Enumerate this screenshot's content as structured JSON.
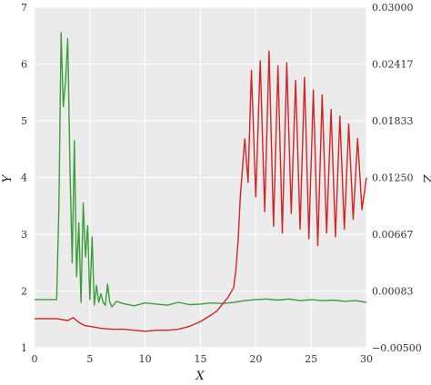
{
  "chart_data": {
    "type": "line",
    "xlabel": "X",
    "ylabel": "Y",
    "y2label": "Z",
    "xlim": [
      0,
      30
    ],
    "ylim": [
      1,
      7
    ],
    "y2lim": [
      -0.005,
      0.03
    ],
    "grid": true,
    "x_ticks": [
      "0",
      "5",
      "10",
      "15",
      "20",
      "25",
      "30"
    ],
    "y_ticks": [
      "1",
      "2",
      "3",
      "4",
      "5",
      "6",
      "7"
    ],
    "y2_ticks": [
      "−0.00500",
      "0.00083",
      "0.00667",
      "0.01250",
      "0.01833",
      "0.02417",
      "0.03000"
    ],
    "series": [
      {
        "axis": "left",
        "color": "#3a9e3a",
        "x": [
          0,
          2.0,
          2.2,
          2.4,
          2.6,
          2.8,
          3.0,
          3.2,
          3.4,
          3.6,
          3.8,
          4.0,
          4.2,
          4.4,
          4.6,
          4.8,
          5.0,
          5.2,
          5.4,
          5.6,
          5.8,
          6.0,
          6.2,
          6.4,
          6.6,
          6.8,
          7.0,
          7.4,
          8.0,
          9.0,
          10.0,
          11.0,
          12.0,
          13.0,
          14.0,
          15.0,
          16.0,
          17.0,
          18.0,
          19.0,
          20.0,
          21.0,
          22.0,
          23.0,
          24.0,
          25.0,
          26.0,
          27.0,
          28.0,
          29.0,
          30.0
        ],
        "y": [
          1.85,
          1.85,
          3.5,
          6.55,
          5.25,
          5.7,
          6.45,
          4.2,
          2.5,
          4.65,
          2.25,
          3.2,
          1.8,
          3.55,
          2.6,
          3.15,
          1.85,
          2.95,
          1.75,
          2.1,
          1.8,
          1.95,
          1.8,
          1.75,
          2.12,
          1.8,
          1.72,
          1.82,
          1.78,
          1.74,
          1.79,
          1.77,
          1.75,
          1.8,
          1.76,
          1.77,
          1.79,
          1.78,
          1.8,
          1.83,
          1.85,
          1.86,
          1.84,
          1.86,
          1.83,
          1.85,
          1.83,
          1.84,
          1.82,
          1.83,
          1.8
        ]
      },
      {
        "axis": "right",
        "color": "#d42424",
        "x": [
          0,
          2.0,
          3.0,
          3.5,
          4.0,
          4.5,
          5.0,
          6.0,
          7.0,
          8.0,
          9.0,
          10.0,
          11.0,
          12.0,
          13.0,
          14.0,
          15.0,
          16.0,
          16.5,
          17.0,
          17.5,
          18.0,
          18.2,
          18.4,
          18.6,
          18.8,
          19.0
        ],
        "y": [
          -0.002,
          -0.002,
          -0.0022,
          -0.0019,
          -0.0024,
          -0.0027,
          -0.0028,
          -0.003,
          -0.0031,
          -0.0031,
          -0.0032,
          -0.0033,
          -0.0032,
          -0.0032,
          -0.0031,
          -0.0028,
          -0.0023,
          -0.0016,
          -0.0012,
          -0.0005,
          0.0002,
          0.0012,
          0.003,
          0.006,
          0.0105,
          0.0135,
          0.0165
        ]
      },
      {
        "axis": "right",
        "color": "#d42424",
        "x": [
          19.0,
          19.3,
          19.6,
          20.0,
          20.4,
          20.8,
          21.2,
          21.6,
          22.0,
          22.4,
          22.8,
          23.2,
          23.6,
          24.0,
          24.4,
          24.8,
          25.2,
          25.6,
          26.0,
          26.4,
          26.8,
          27.2,
          27.6,
          28.0,
          28.4,
          28.8,
          29.2,
          29.6,
          30.0
        ],
        "y": [
          0.0165,
          0.012,
          0.0235,
          0.0105,
          0.0245,
          0.009,
          0.0255,
          0.0075,
          0.024,
          0.0068,
          0.0243,
          0.0088,
          0.0225,
          0.0072,
          0.0228,
          0.0062,
          0.0215,
          0.0055,
          0.021,
          0.0068,
          0.0195,
          0.0064,
          0.0188,
          0.0072,
          0.018,
          0.0082,
          0.0165,
          0.0092,
          0.0125
        ]
      }
    ]
  }
}
